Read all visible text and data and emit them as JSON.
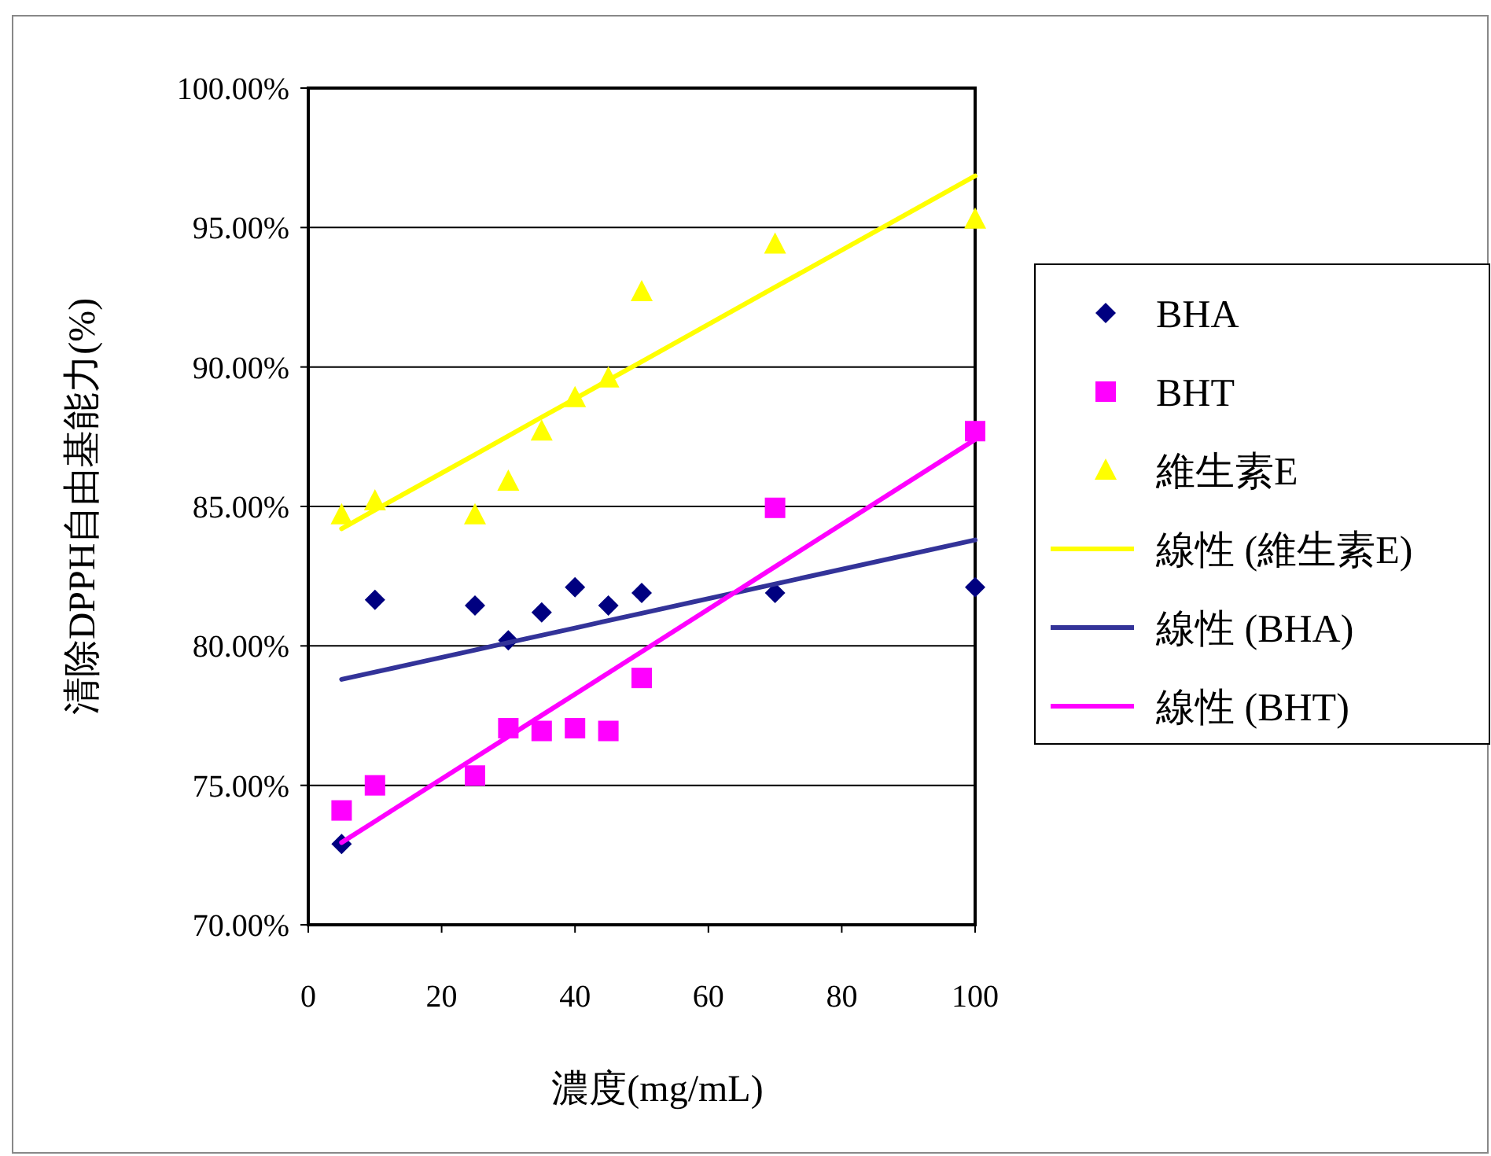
{
  "chart_data": {
    "type": "scatter",
    "xlabel": "濃度(mg/mL)",
    "ylabel": "清除DPPH自由基能力(%)",
    "xlim": [
      0,
      100
    ],
    "xticks": [
      0,
      20,
      40,
      60,
      80,
      100
    ],
    "ylim": [
      70,
      100
    ],
    "yticks": [
      {
        "value": 70,
        "label": "70.00%"
      },
      {
        "value": 75,
        "label": "75.00%"
      },
      {
        "value": 80,
        "label": "80.00%"
      },
      {
        "value": 85,
        "label": "85.00%"
      },
      {
        "value": 90,
        "label": "90.00%"
      },
      {
        "value": 95,
        "label": "95.00%"
      },
      {
        "value": 100,
        "label": "100.00%"
      }
    ],
    "grid": "y",
    "legend": "right",
    "x": [
      5,
      10,
      25,
      30,
      35,
      40,
      45,
      50,
      70,
      100
    ],
    "series": [
      {
        "name": "BHA",
        "color": "#000080",
        "marker": "diamond",
        "values": [
          72.9,
          81.65,
          81.45,
          80.2,
          81.2,
          82.1,
          81.45,
          81.9,
          81.9,
          82.1
        ]
      },
      {
        "name": "BHT",
        "color": "#ff00ff",
        "marker": "square",
        "values": [
          74.1,
          75.0,
          75.35,
          77.05,
          76.95,
          77.05,
          76.95,
          78.85,
          84.95,
          87.7
        ]
      },
      {
        "name": "維生素E",
        "color": "#ffff00",
        "marker": "triangle",
        "values": [
          84.7,
          85.2,
          84.7,
          85.9,
          87.7,
          88.9,
          89.6,
          92.7,
          94.4,
          95.3
        ]
      },
      {
        "name": "線性 (維生素E)",
        "type": "line",
        "color": "#ffff00",
        "values": [
          84.2,
          84.87,
          86.86,
          87.53,
          88.2,
          88.86,
          89.53,
          90.19,
          92.86,
          96.85
        ]
      },
      {
        "name": "線性 (BHA)",
        "type": "line",
        "color": "#333399",
        "values": [
          78.8,
          79.06,
          79.85,
          80.12,
          80.38,
          80.64,
          80.91,
          81.17,
          82.22,
          83.8
        ]
      },
      {
        "name": "線性 (BHT)",
        "type": "line",
        "color": "#ff00ff",
        "values": [
          72.95,
          73.71,
          75.99,
          76.75,
          77.51,
          78.27,
          79.03,
          79.79,
          82.84,
          87.4
        ]
      }
    ]
  }
}
